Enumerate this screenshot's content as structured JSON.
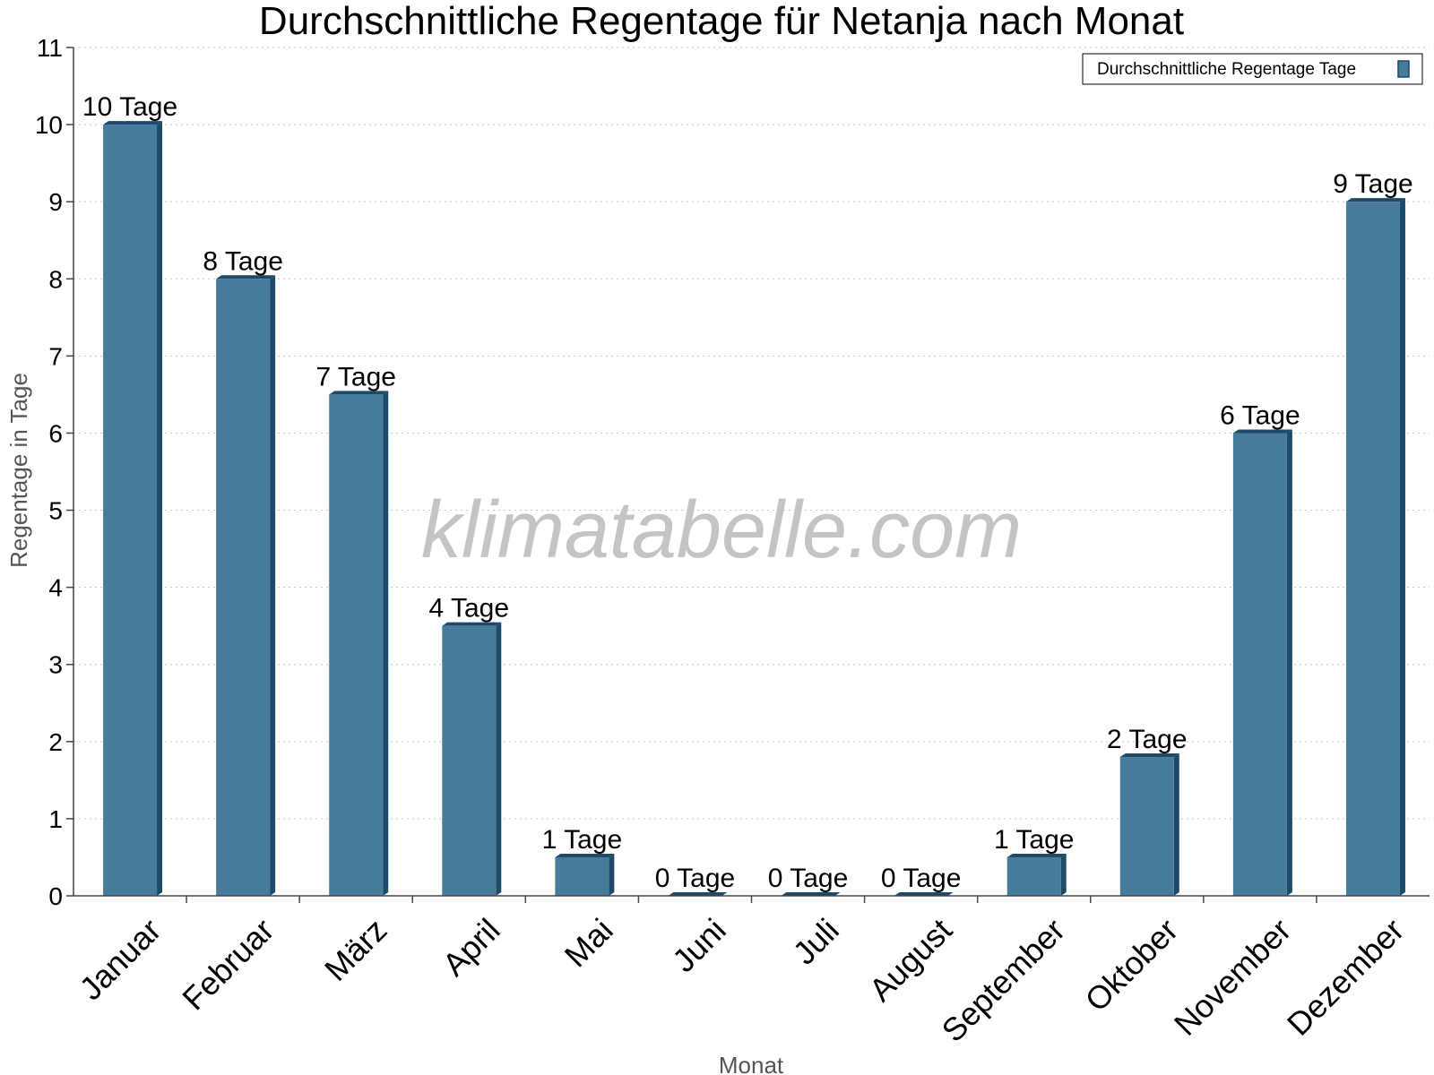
{
  "chart_data": {
    "type": "bar",
    "title": "Durchschnittliche Regentage für Netanja nach Monat",
    "xlabel": "Monat",
    "ylabel": "Regentage in Tage",
    "ylim": [
      0,
      11
    ],
    "yticks": [
      0,
      1,
      2,
      3,
      4,
      5,
      6,
      7,
      8,
      9,
      10,
      11
    ],
    "grid": true,
    "legend_placement": "top-right",
    "categories": [
      "Januar",
      "Februar",
      "März",
      "April",
      "Mai",
      "Juni",
      "Juli",
      "August",
      "September",
      "Oktober",
      "November",
      "Dezember"
    ],
    "series": [
      {
        "name": "Durchschnittliche Regentage Tage",
        "color": "#467b9c",
        "values": [
          10,
          8,
          6.5,
          3.5,
          0.5,
          0,
          0,
          0,
          0.5,
          1.8,
          6,
          9
        ],
        "labels": [
          "10 Tage",
          "8 Tage",
          "7 Tage",
          "4 Tage",
          "1 Tage",
          "0 Tage",
          "0 Tage",
          "0 Tage",
          "1 Tage",
          "2 Tage",
          "6 Tage",
          "9 Tage"
        ]
      }
    ]
  },
  "watermark": "klimatabelle.com"
}
